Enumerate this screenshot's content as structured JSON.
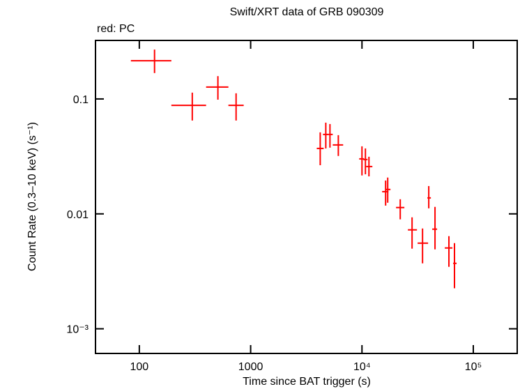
{
  "chart_data": {
    "type": "scatter",
    "title": "Swift/XRT data of GRB 090309",
    "annotation": "red: PC",
    "x_label": "Time since BAT trigger (s)",
    "y_label": "Count Rate (0.3–10 keV) (s⁻¹)",
    "xscale": "log",
    "yscale": "log",
    "xlim": [
      40.4,
      248000
    ],
    "ylim": [
      0.00061,
      0.323
    ],
    "xticks": [
      100,
      1000,
      {
        "value": 10000,
        "label": "10⁴"
      },
      {
        "value": 100000,
        "label": "10⁵"
      }
    ],
    "yticks": [
      {
        "value": 0.001,
        "label": "10⁻³"
      },
      0.01,
      0.1
    ],
    "series": [
      {
        "color": "#ff0000",
        "x": [
          137,
          299,
          508,
          740,
          4217,
          4732,
          5158,
          6132,
          10000,
          10740,
          11550,
          16310,
          17030,
          22070,
          28180,
          35000,
          39810,
          45290,
          60390,
          67760
        ],
        "xmin": [
          84,
          194,
          398,
          631,
          3926,
          4467,
          5012,
          5464,
          9441,
          10290,
          10900,
          15170,
          16410,
          20230,
          25850,
          31620,
          38690,
          42760,
          55460,
          65910
        ],
        "xmax": [
          194,
          398,
          631,
          866,
          4530,
          5012,
          5464,
          6776,
          10450,
          11220,
          12400,
          17280,
          18030,
          24040,
          31190,
          39260,
          41590,
          47320,
          64940,
          70790
        ],
        "values": [
          0.215,
          0.088,
          0.127,
          0.088,
          0.0371,
          0.0491,
          0.0491,
          0.0398,
          0.0301,
          0.0297,
          0.0258,
          0.0156,
          0.0163,
          0.01135,
          0.00726,
          0.00556,
          0.01377,
          0.00736,
          0.00505,
          0.00371
        ],
        "ymin": [
          0.168,
          0.0649,
          0.0986,
          0.0649,
          0.0265,
          0.0371,
          0.0377,
          0.0319,
          0.0216,
          0.0221,
          0.0212,
          0.0118,
          0.0125,
          0.00896,
          0.00498,
          0.00371,
          0.01117,
          0.00491,
          0.00346,
          0.00225
        ],
        "ymax": [
          0.269,
          0.1135,
          0.158,
          0.112,
          0.0512,
          0.0622,
          0.0605,
          0.0484,
          0.0387,
          0.0371,
          0.0314,
          0.0195,
          0.0207,
          0.0134,
          0.00933,
          0.00746,
          0.01746,
          0.0115,
          0.0064,
          0.00556
        ]
      }
    ]
  }
}
